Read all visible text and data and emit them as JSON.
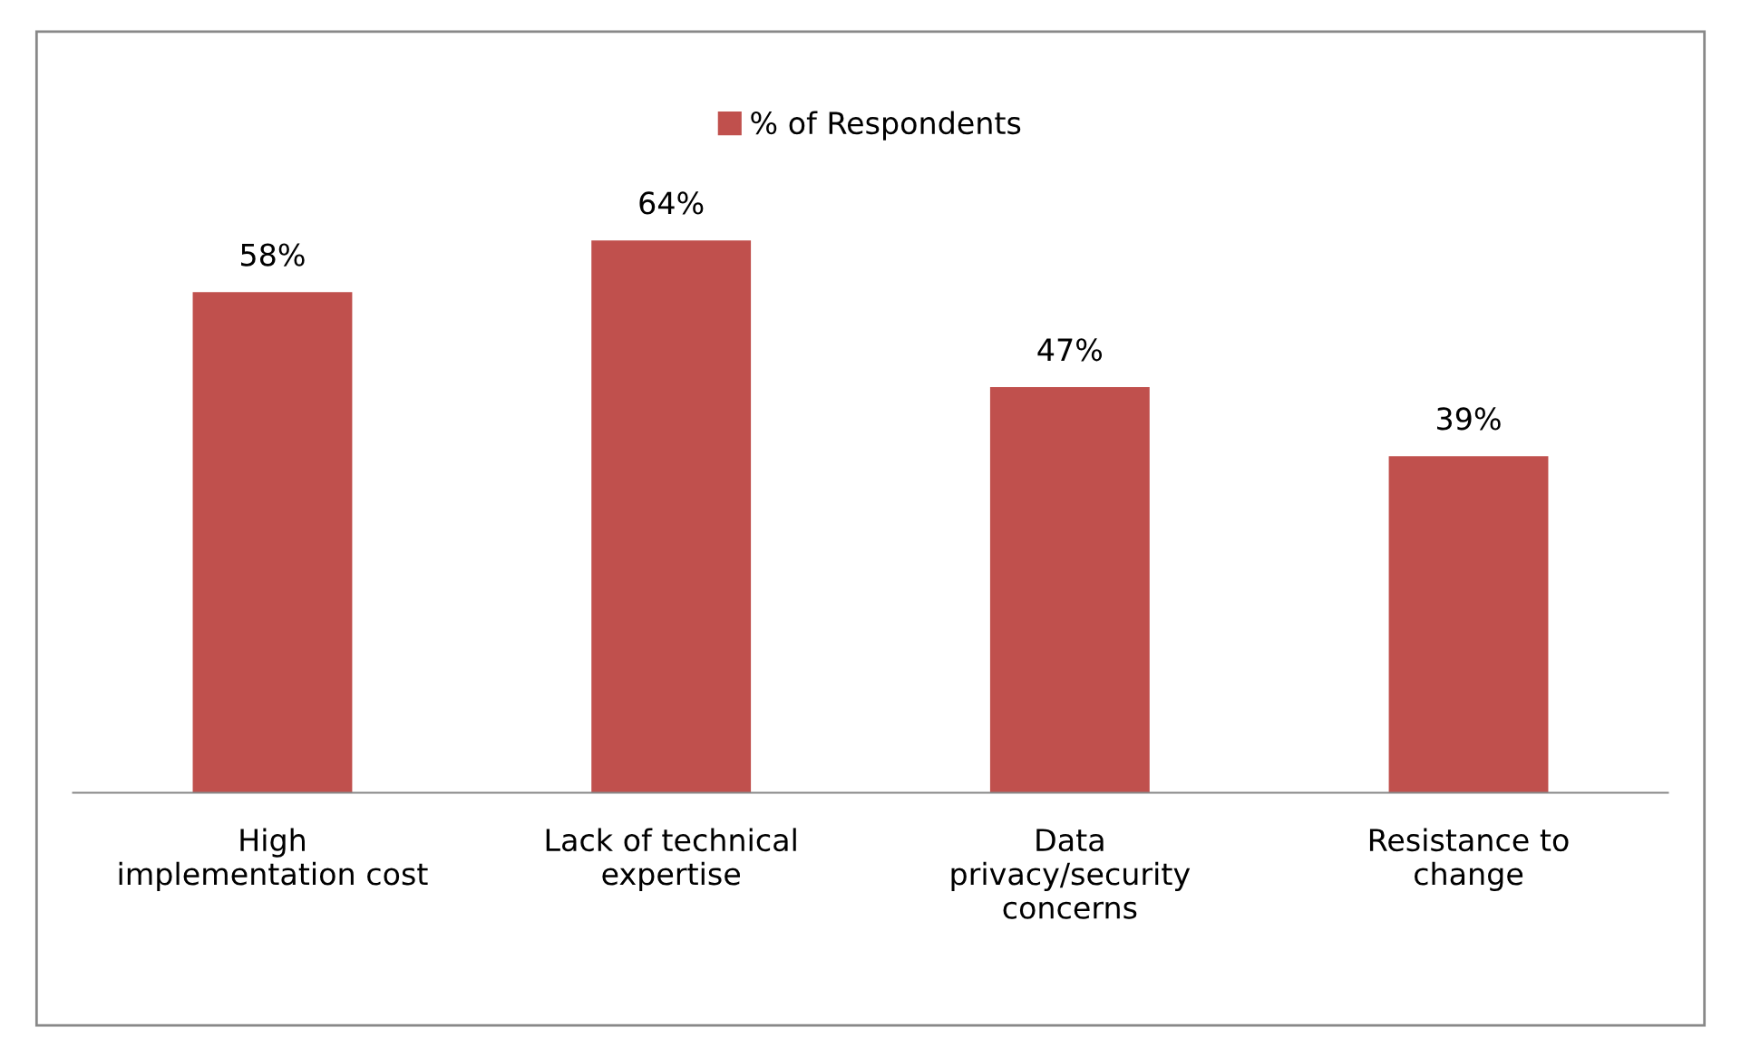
{
  "chart_data": {
    "type": "bar",
    "categories": [
      "High\nimplementation cost",
      "Lack of technical\nexpertise",
      "Data\nprivacy/security\nconcerns",
      "Resistance to\nchange"
    ],
    "series": [
      {
        "name": "% of Respondents",
        "color": "#c0504d",
        "values": [
          58,
          64,
          47,
          39
        ],
        "value_labels": [
          "58%",
          "64%",
          "47%",
          "39%"
        ]
      }
    ],
    "relative": false,
    "legend": "top",
    "grid": false
  }
}
